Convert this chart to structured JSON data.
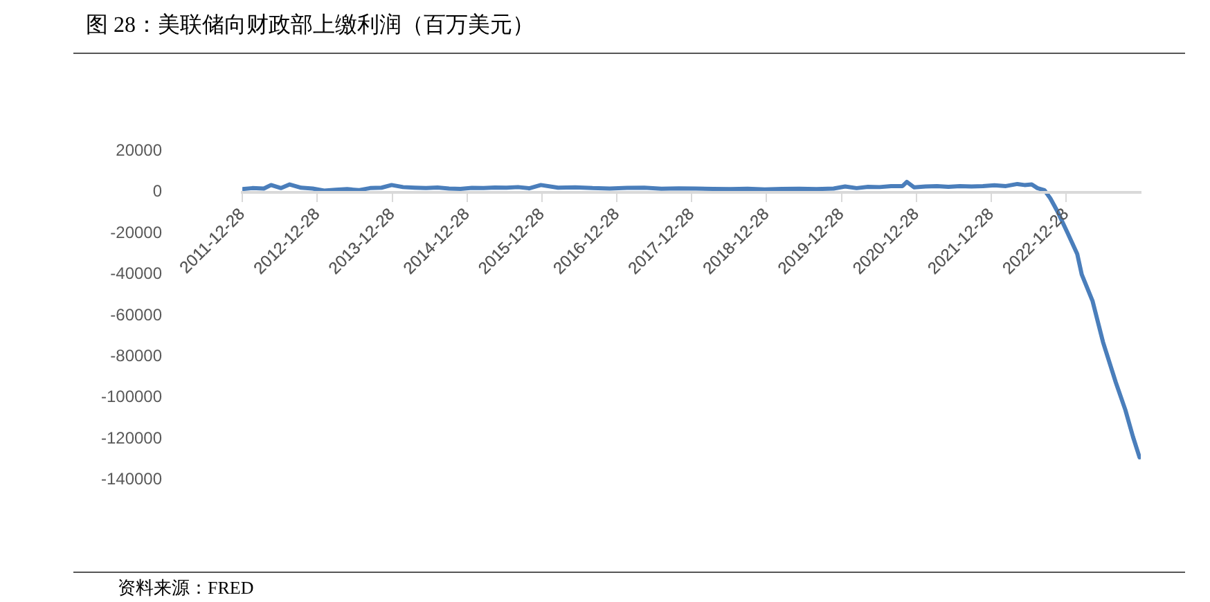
{
  "chart_data": {
    "type": "line",
    "title": "图 28：美联储向财政部上缴利润（百万美元）",
    "annotations": [
      "资料来源：FRED"
    ],
    "x": [
      "2011-12-28",
      "2012-02-15",
      "2012-04-11",
      "2012-05-16",
      "2012-07-04",
      "2012-08-15",
      "2012-10-10",
      "2012-12-05",
      "2013-01-30",
      "2013-03-27",
      "2013-05-22",
      "2013-07-17",
      "2013-09-11",
      "2013-11-06",
      "2013-12-25",
      "2014-02-19",
      "2014-04-16",
      "2014-06-11",
      "2014-08-06",
      "2014-10-01",
      "2014-11-26",
      "2015-01-21",
      "2015-03-18",
      "2015-05-13",
      "2015-07-08",
      "2015-09-02",
      "2015-10-28",
      "2015-12-23",
      "2016-03-16",
      "2016-06-08",
      "2016-08-31",
      "2016-11-23",
      "2017-02-15",
      "2017-05-10",
      "2017-08-02",
      "2017-10-25",
      "2018-01-17",
      "2018-04-11",
      "2018-07-04",
      "2018-09-26",
      "2018-12-19",
      "2019-03-13",
      "2019-06-05",
      "2019-08-28",
      "2019-11-20",
      "2020-01-15",
      "2020-03-11",
      "2020-05-06",
      "2020-07-01",
      "2020-08-26",
      "2020-10-21",
      "2020-11-11",
      "2020-12-16",
      "2021-02-10",
      "2021-04-07",
      "2021-06-02",
      "2021-07-28",
      "2021-09-22",
      "2021-11-17",
      "2022-01-12",
      "2022-03-09",
      "2022-05-04",
      "2022-06-08",
      "2022-07-13",
      "2022-08-10",
      "2022-09-13",
      "2022-10-12",
      "2022-11-16",
      "2023-01-05",
      "2023-02-20",
      "2023-03-14",
      "2023-05-06",
      "2023-06-26",
      "2023-08-27",
      "2023-10-13",
      "2023-11-19",
      "2023-12-21"
    ],
    "series": [
      {
        "color": "#4a7ebb",
        "values": [
          1500,
          2000,
          1800,
          3500,
          2000,
          3800,
          2200,
          1800,
          800,
          1200,
          1500,
          1000,
          2000,
          2200,
          3500,
          2500,
          2200,
          2000,
          2300,
          1800,
          1600,
          2100,
          2000,
          2300,
          2200,
          2500,
          1900,
          3500,
          2200,
          2400,
          2000,
          1800,
          2100,
          2200,
          1700,
          1900,
          1800,
          1600,
          1500,
          1700,
          1400,
          1600,
          1700,
          1500,
          1800,
          2800,
          2000,
          2600,
          2500,
          3000,
          3000,
          5000,
          2400,
          2800,
          3000,
          2600,
          3000,
          2800,
          3000,
          3400,
          3000,
          4000,
          3500,
          3800,
          2000,
          1000,
          -3000,
          -9400,
          -20000,
          -30000,
          -40000,
          -53000,
          -73000,
          -92500,
          -106000,
          -119000,
          -129000
        ]
      }
    ],
    "xlim": [
      "2011-12-28",
      "2023-12-27"
    ],
    "xticks": [
      "2011-12-28",
      "2012-12-28",
      "2013-12-28",
      "2014-12-28",
      "2015-12-28",
      "2016-12-28",
      "2017-12-28",
      "2018-12-28",
      "2019-12-28",
      "2020-12-28",
      "2021-12-28",
      "2022-12-28"
    ],
    "ylim": [
      -140000,
      20000
    ],
    "yticks": [
      -140000,
      -120000,
      -100000,
      -80000,
      -60000,
      -40000,
      -20000,
      0,
      20000
    ],
    "marker": "none",
    "line_style": "solid",
    "grid": false,
    "legend": false
  }
}
